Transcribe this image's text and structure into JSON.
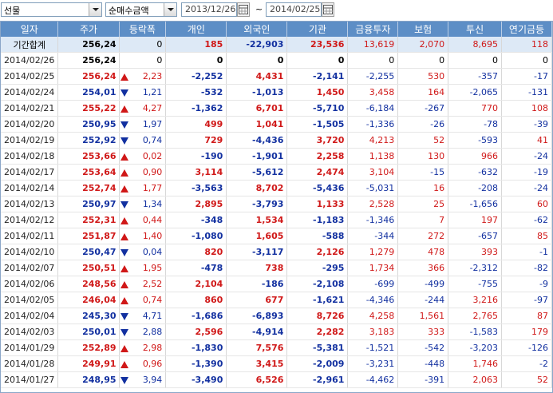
{
  "toolbar": {
    "market": "선물",
    "metric": "순매수금액",
    "date_from": "2013/12/26",
    "date_sep": "~",
    "date_to": "2014/02/25"
  },
  "columns": [
    "일자",
    "주가",
    "등락폭",
    "개인",
    "외국인",
    "기관",
    "금융투자",
    "보험",
    "투신",
    "연기금등"
  ],
  "colors": {
    "up": "#d01818",
    "down": "#1230a0",
    "header": "#5d8ec6",
    "total_row": "#dde9f6"
  },
  "total": {
    "date": "기간합계",
    "price": "256,24",
    "change": "0",
    "indiv": "185",
    "foreign": "-22,903",
    "inst": "23,536",
    "fin": "13,619",
    "ins": "2,070",
    "trust": "8,695",
    "pension": "118"
  },
  "rows": [
    {
      "date": "2014/02/26",
      "price": "256,24",
      "dir": "",
      "change": "0",
      "indiv": "0",
      "foreign": "0",
      "inst": "0",
      "fin": "0",
      "ins": "0",
      "trust": "0",
      "pension": "0"
    },
    {
      "date": "2014/02/25",
      "price": "256,24",
      "dir": "up",
      "change": "2,23",
      "indiv": "-2,252",
      "foreign": "4,431",
      "inst": "-2,141",
      "fin": "-2,255",
      "ins": "530",
      "trust": "-357",
      "pension": "-17"
    },
    {
      "date": "2014/02/24",
      "price": "254,01",
      "dir": "down",
      "change": "1,21",
      "indiv": "-532",
      "foreign": "-1,013",
      "inst": "1,450",
      "fin": "3,458",
      "ins": "164",
      "trust": "-2,065",
      "pension": "-131"
    },
    {
      "date": "2014/02/21",
      "price": "255,22",
      "dir": "up",
      "change": "4,27",
      "indiv": "-1,362",
      "foreign": "6,701",
      "inst": "-5,710",
      "fin": "-6,184",
      "ins": "-267",
      "trust": "770",
      "pension": "108"
    },
    {
      "date": "2014/02/20",
      "price": "250,95",
      "dir": "down",
      "change": "1,97",
      "indiv": "499",
      "foreign": "1,041",
      "inst": "-1,505",
      "fin": "-1,336",
      "ins": "-26",
      "trust": "-78",
      "pension": "-39"
    },
    {
      "date": "2014/02/19",
      "price": "252,92",
      "dir": "down",
      "change": "0,74",
      "indiv": "729",
      "foreign": "-4,436",
      "inst": "3,720",
      "fin": "4,213",
      "ins": "52",
      "trust": "-593",
      "pension": "41"
    },
    {
      "date": "2014/02/18",
      "price": "253,66",
      "dir": "up",
      "change": "0,02",
      "indiv": "-190",
      "foreign": "-1,901",
      "inst": "2,258",
      "fin": "1,138",
      "ins": "130",
      "trust": "966",
      "pension": "-24"
    },
    {
      "date": "2014/02/17",
      "price": "253,64",
      "dir": "up",
      "change": "0,90",
      "indiv": "3,114",
      "foreign": "-5,612",
      "inst": "2,474",
      "fin": "3,104",
      "ins": "-15",
      "trust": "-632",
      "pension": "-19"
    },
    {
      "date": "2014/02/14",
      "price": "252,74",
      "dir": "up",
      "change": "1,77",
      "indiv": "-3,563",
      "foreign": "8,702",
      "inst": "-5,436",
      "fin": "-5,031",
      "ins": "16",
      "trust": "-208",
      "pension": "-24"
    },
    {
      "date": "2014/02/13",
      "price": "250,97",
      "dir": "down",
      "change": "1,34",
      "indiv": "2,895",
      "foreign": "-3,793",
      "inst": "1,133",
      "fin": "2,528",
      "ins": "25",
      "trust": "-1,656",
      "pension": "60"
    },
    {
      "date": "2014/02/12",
      "price": "252,31",
      "dir": "up",
      "change": "0,44",
      "indiv": "-348",
      "foreign": "1,534",
      "inst": "-1,183",
      "fin": "-1,346",
      "ins": "7",
      "trust": "197",
      "pension": "-62"
    },
    {
      "date": "2014/02/11",
      "price": "251,87",
      "dir": "up",
      "change": "1,40",
      "indiv": "-1,080",
      "foreign": "1,605",
      "inst": "-588",
      "fin": "-344",
      "ins": "272",
      "trust": "-657",
      "pension": "85"
    },
    {
      "date": "2014/02/10",
      "price": "250,47",
      "dir": "down",
      "change": "0,04",
      "indiv": "820",
      "foreign": "-3,117",
      "inst": "2,126",
      "fin": "1,279",
      "ins": "478",
      "trust": "393",
      "pension": "-1"
    },
    {
      "date": "2014/02/07",
      "price": "250,51",
      "dir": "up",
      "change": "1,95",
      "indiv": "-478",
      "foreign": "738",
      "inst": "-295",
      "fin": "1,734",
      "ins": "366",
      "trust": "-2,312",
      "pension": "-82"
    },
    {
      "date": "2014/02/06",
      "price": "248,56",
      "dir": "up",
      "change": "2,52",
      "indiv": "2,104",
      "foreign": "-186",
      "inst": "-2,108",
      "fin": "-699",
      "ins": "-499",
      "trust": "-755",
      "pension": "-9"
    },
    {
      "date": "2014/02/05",
      "price": "246,04",
      "dir": "up",
      "change": "0,74",
      "indiv": "860",
      "foreign": "677",
      "inst": "-1,621",
      "fin": "-4,346",
      "ins": "-244",
      "trust": "3,216",
      "pension": "-97"
    },
    {
      "date": "2014/02/04",
      "price": "245,30",
      "dir": "down",
      "change": "4,71",
      "indiv": "-1,686",
      "foreign": "-6,893",
      "inst": "8,726",
      "fin": "4,258",
      "ins": "1,561",
      "trust": "2,765",
      "pension": "87"
    },
    {
      "date": "2014/02/03",
      "price": "250,01",
      "dir": "down",
      "change": "2,88",
      "indiv": "2,596",
      "foreign": "-4,914",
      "inst": "2,282",
      "fin": "3,183",
      "ins": "333",
      "trust": "-1,583",
      "pension": "179"
    },
    {
      "date": "2014/01/29",
      "price": "252,89",
      "dir": "up",
      "change": "2,98",
      "indiv": "-1,830",
      "foreign": "7,576",
      "inst": "-5,381",
      "fin": "-1,521",
      "ins": "-542",
      "trust": "-3,203",
      "pension": "-126"
    },
    {
      "date": "2014/01/28",
      "price": "249,91",
      "dir": "up",
      "change": "0,96",
      "indiv": "-1,390",
      "foreign": "3,415",
      "inst": "-2,009",
      "fin": "-3,231",
      "ins": "-448",
      "trust": "1,746",
      "pension": "-2"
    },
    {
      "date": "2014/01/27",
      "price": "248,95",
      "dir": "down",
      "change": "3,94",
      "indiv": "-3,490",
      "foreign": "6,526",
      "inst": "-2,961",
      "fin": "-4,462",
      "ins": "-391",
      "trust": "2,063",
      "pension": "52"
    }
  ]
}
